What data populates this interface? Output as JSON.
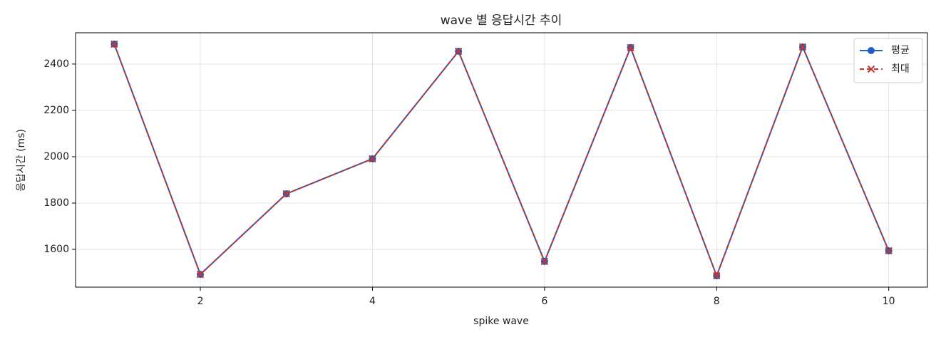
{
  "chart_data": {
    "type": "line",
    "title": "wave 별 응답시간 추이",
    "x_label": "spike wave",
    "y_label": "응답시간 (ms)",
    "x": [
      1,
      2,
      3,
      4,
      5,
      6,
      7,
      8,
      9,
      10
    ],
    "series": [
      {
        "name": "평균",
        "color": "#1f5fbf",
        "marker": "o",
        "linestyle": "solid",
        "values": [
          2486,
          1492,
          1840,
          1991,
          2455,
          1548,
          2471,
          1486,
          2474,
          1594
        ]
      },
      {
        "name": "최대",
        "color": "#c8332b",
        "marker": "x",
        "linestyle": "dashed",
        "values": [
          2486,
          1492,
          1840,
          1991,
          2455,
          1548,
          2471,
          1486,
          2474,
          1594
        ]
      }
    ],
    "xlim": [
      0.55,
      10.45
    ],
    "ylim": [
      1437,
      2535
    ],
    "xticks": [
      2,
      4,
      6,
      8,
      10
    ],
    "yticks": [
      1600,
      1800,
      2000,
      2200,
      2400
    ],
    "grid": true,
    "legend": "upper right"
  }
}
